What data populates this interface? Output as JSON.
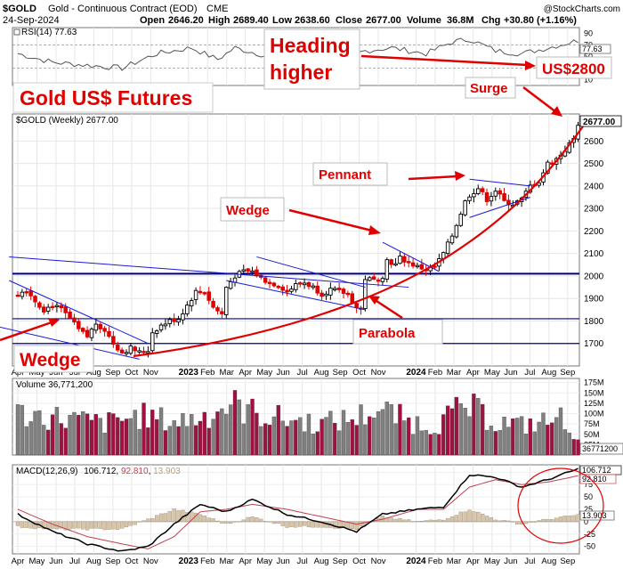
{
  "header": {
    "symbol": "$GOLD",
    "name": "Gold - Continuous Contract (EOD)",
    "exchange": "CME",
    "date": "24-Sep-2024",
    "open_label": "Open",
    "open": "2646.20",
    "high_label": "High",
    "high": "2689.40",
    "low_label": "Low",
    "low": "2638.60",
    "close_label": "Close",
    "close": "2677.00",
    "volume_label": "Volume",
    "volume": "36.8M",
    "chg_label": "Chg",
    "chg": "+30.80 (+1.16%)",
    "watermark": "@StockCharts.com"
  },
  "rsi": {
    "label": "RSI(14) 77.63",
    "value": 77.63,
    "value_label": "77.63",
    "levels": [
      90,
      70,
      50,
      30,
      10
    ],
    "range": [
      0,
      100
    ]
  },
  "price": {
    "label": "$GOLD (Weekly) 2677.00",
    "last_label": "2677.00",
    "y_ticks": [
      1700,
      1800,
      1900,
      2000,
      2100,
      2200,
      2300,
      2400,
      2500,
      2600
    ],
    "ylim": [
      1600,
      2720
    ],
    "horizontal_levels": [
      2010,
      1810,
      1700
    ]
  },
  "volume": {
    "label": "Volume 36,771,200",
    "value_label": "36771200",
    "y_tick_labels": [
      "175M",
      "150M",
      "125M",
      "100M",
      "75M",
      "50M",
      "25M"
    ],
    "y_ticks": [
      175,
      150,
      125,
      100,
      75,
      50,
      25
    ],
    "ylim": [
      0,
      185
    ]
  },
  "macd": {
    "label_prefix": "MACD(12,26,9)",
    "macd_value": "106.712",
    "signal_value": "92.810",
    "hist_value": "13.903",
    "y_ticks": [
      100,
      75,
      50,
      25,
      0,
      -25,
      -50
    ],
    "ylim": [
      -65,
      115
    ]
  },
  "x_axis": {
    "labels": [
      {
        "t": 0,
        "text": "Apr",
        "bold": false
      },
      {
        "t": 4.4,
        "text": "May",
        "bold": false
      },
      {
        "t": 8.8,
        "text": "Jun",
        "bold": false
      },
      {
        "t": 13.1,
        "text": "Jul",
        "bold": false
      },
      {
        "t": 17.5,
        "text": "Aug",
        "bold": false
      },
      {
        "t": 21.9,
        "text": "Sep",
        "bold": false
      },
      {
        "t": 26.2,
        "text": "Oct",
        "bold": false
      },
      {
        "t": 30.6,
        "text": "Nov",
        "bold": false
      },
      {
        "t": 39.3,
        "text": "2023",
        "bold": true
      },
      {
        "t": 43.7,
        "text": "Feb",
        "bold": false
      },
      {
        "t": 48.1,
        "text": "Mar",
        "bold": false
      },
      {
        "t": 52.4,
        "text": "Apr",
        "bold": false
      },
      {
        "t": 56.8,
        "text": "May",
        "bold": false
      },
      {
        "t": 61.1,
        "text": "Jun",
        "bold": false
      },
      {
        "t": 65.5,
        "text": "Jul",
        "bold": false
      },
      {
        "t": 69.9,
        "text": "Aug",
        "bold": false
      },
      {
        "t": 74.2,
        "text": "Sep",
        "bold": false
      },
      {
        "t": 78.6,
        "text": "Oct",
        "bold": false
      },
      {
        "t": 83.0,
        "text": "Nov",
        "bold": false
      },
      {
        "t": 91.7,
        "text": "2024",
        "bold": true
      },
      {
        "t": 96.1,
        "text": "Feb",
        "bold": false
      },
      {
        "t": 100.4,
        "text": "Mar",
        "bold": false
      },
      {
        "t": 104.8,
        "text": "Apr",
        "bold": false
      },
      {
        "t": 109.2,
        "text": "May",
        "bold": false
      },
      {
        "t": 113.5,
        "text": "Jun",
        "bold": false
      },
      {
        "t": 117.9,
        "text": "Jul",
        "bold": false
      },
      {
        "t": 122.3,
        "text": "Aug",
        "bold": false
      },
      {
        "t": 126.6,
        "text": "Sep",
        "bold": false
      }
    ]
  },
  "annotations": {
    "title": "Gold US$ Futures",
    "heading": [
      "Heading",
      "higher"
    ],
    "target": "US$2800",
    "surge": "Surge",
    "pennant": "Pennant",
    "wedge_upper": "Wedge",
    "parabola": "Parabola",
    "wedge_lower": "Wedge"
  },
  "colors": {
    "up_candle": "#000000",
    "down_candle": "#dd0000",
    "annotation_red": "#e00000",
    "trendline_blue": "#1a1ad6",
    "level_navy": "#000080",
    "volume_up": "#808080",
    "volume_down": "#a01040",
    "macd_line": "#000000",
    "signal_line": "#c04050",
    "histogram": "#d8c4a8"
  },
  "chart_data": {
    "type": "candlestick",
    "interval": "weekly",
    "start_week": "Apr 2022",
    "x_unit": "weeks from start of Apr 2022",
    "price_anchors": [
      {
        "t": 0,
        "close": 1920
      },
      {
        "t": 2,
        "close": 1940
      },
      {
        "t": 4,
        "close": 1890
      },
      {
        "t": 6,
        "close": 1850
      },
      {
        "t": 8,
        "close": 1870
      },
      {
        "t": 10,
        "close": 1850
      },
      {
        "t": 12,
        "close": 1810
      },
      {
        "t": 14,
        "close": 1760
      },
      {
        "t": 16,
        "close": 1730
      },
      {
        "t": 18,
        "close": 1790
      },
      {
        "t": 20,
        "close": 1760
      },
      {
        "t": 22,
        "close": 1700
      },
      {
        "t": 24,
        "close": 1660
      },
      {
        "t": 26,
        "close": 1680
      },
      {
        "t": 28,
        "close": 1660
      },
      {
        "t": 30,
        "close": 1670
      },
      {
        "t": 31,
        "close": 1750
      },
      {
        "t": 33,
        "close": 1780
      },
      {
        "t": 35,
        "close": 1800
      },
      {
        "t": 37,
        "close": 1810
      },
      {
        "t": 39,
        "close": 1870
      },
      {
        "t": 41,
        "close": 1930
      },
      {
        "t": 43,
        "close": 1930
      },
      {
        "t": 45,
        "close": 1860
      },
      {
        "t": 47,
        "close": 1830
      },
      {
        "t": 48,
        "close": 1950
      },
      {
        "t": 50,
        "close": 2000
      },
      {
        "t": 52,
        "close": 2020
      },
      {
        "t": 54,
        "close": 2020
      },
      {
        "t": 56,
        "close": 1990
      },
      {
        "t": 58,
        "close": 1970
      },
      {
        "t": 60,
        "close": 1960
      },
      {
        "t": 62,
        "close": 1930
      },
      {
        "t": 64,
        "close": 1960
      },
      {
        "t": 66,
        "close": 1970
      },
      {
        "t": 68,
        "close": 1950
      },
      {
        "t": 70,
        "close": 1920
      },
      {
        "t": 72,
        "close": 1940
      },
      {
        "t": 74,
        "close": 1930
      },
      {
        "t": 76,
        "close": 1920
      },
      {
        "t": 78,
        "close": 1860
      },
      {
        "t": 79,
        "close": 1850
      },
      {
        "t": 80,
        "close": 1990
      },
      {
        "t": 82,
        "close": 1980
      },
      {
        "t": 84,
        "close": 2000
      },
      {
        "t": 85,
        "close": 2070
      },
      {
        "t": 87,
        "close": 2050
      },
      {
        "t": 88,
        "close": 2080
      },
      {
        "t": 90,
        "close": 2060
      },
      {
        "t": 92,
        "close": 2040
      },
      {
        "t": 94,
        "close": 2030
      },
      {
        "t": 96,
        "close": 2040
      },
      {
        "t": 98,
        "close": 2100
      },
      {
        "t": 100,
        "close": 2180
      },
      {
        "t": 101,
        "close": 2230
      },
      {
        "t": 103,
        "close": 2330
      },
      {
        "t": 104,
        "close": 2360
      },
      {
        "t": 106,
        "close": 2390
      },
      {
        "t": 108,
        "close": 2340
      },
      {
        "t": 110,
        "close": 2380
      },
      {
        "t": 112,
        "close": 2330
      },
      {
        "t": 114,
        "close": 2320
      },
      {
        "t": 116,
        "close": 2340
      },
      {
        "t": 118,
        "close": 2400
      },
      {
        "t": 120,
        "close": 2420
      },
      {
        "t": 122,
        "close": 2500
      },
      {
        "t": 124,
        "close": 2520
      },
      {
        "t": 126,
        "close": 2560
      },
      {
        "t": 128,
        "close": 2610
      },
      {
        "t": 129,
        "close": 2677
      }
    ],
    "volume_anchors": [
      {
        "t": 0,
        "v": 105
      },
      {
        "t": 10,
        "v": 95
      },
      {
        "t": 20,
        "v": 80
      },
      {
        "t": 28,
        "v": 100
      },
      {
        "t": 36,
        "v": 85
      },
      {
        "t": 42,
        "v": 95
      },
      {
        "t": 46,
        "v": 115
      },
      {
        "t": 49,
        "v": 130
      },
      {
        "t": 55,
        "v": 105
      },
      {
        "t": 62,
        "v": 90
      },
      {
        "t": 70,
        "v": 80
      },
      {
        "t": 78,
        "v": 95
      },
      {
        "t": 82,
        "v": 115
      },
      {
        "t": 86,
        "v": 105
      },
      {
        "t": 90,
        "v": 85
      },
      {
        "t": 96,
        "v": 75
      },
      {
        "t": 100,
        "v": 105
      },
      {
        "t": 104,
        "v": 120
      },
      {
        "t": 110,
        "v": 85
      },
      {
        "t": 116,
        "v": 75
      },
      {
        "t": 122,
        "v": 85
      },
      {
        "t": 126,
        "v": 95
      },
      {
        "t": 129,
        "v": 37
      }
    ],
    "macd_anchors": [
      {
        "t": 0,
        "macd": 15,
        "signal": 25
      },
      {
        "t": 8,
        "macd": -20,
        "signal": -5
      },
      {
        "t": 16,
        "macd": -45,
        "signal": -30
      },
      {
        "t": 24,
        "macd": -60,
        "signal": -45
      },
      {
        "t": 30,
        "macd": -50,
        "signal": -55
      },
      {
        "t": 36,
        "macd": -5,
        "signal": -30
      },
      {
        "t": 42,
        "macd": 35,
        "signal": 20
      },
      {
        "t": 48,
        "macd": 20,
        "signal": 25
      },
      {
        "t": 54,
        "macd": 45,
        "signal": 35
      },
      {
        "t": 62,
        "macd": 15,
        "signal": 25
      },
      {
        "t": 70,
        "macd": 0,
        "signal": 10
      },
      {
        "t": 78,
        "macd": -20,
        "signal": -5
      },
      {
        "t": 84,
        "macd": 15,
        "signal": 5
      },
      {
        "t": 92,
        "macd": 25,
        "signal": 25
      },
      {
        "t": 98,
        "macd": 30,
        "signal": 25
      },
      {
        "t": 104,
        "macd": 95,
        "signal": 70
      },
      {
        "t": 110,
        "macd": 90,
        "signal": 85
      },
      {
        "t": 116,
        "macd": 70,
        "signal": 75
      },
      {
        "t": 122,
        "macd": 85,
        "signal": 80
      },
      {
        "t": 129,
        "macd": 106.7,
        "signal": 92.8
      }
    ],
    "rsi_anchors": [
      {
        "t": 0,
        "v": 55
      },
      {
        "t": 8,
        "v": 40
      },
      {
        "t": 16,
        "v": 35
      },
      {
        "t": 24,
        "v": 30
      },
      {
        "t": 32,
        "v": 55
      },
      {
        "t": 40,
        "v": 65
      },
      {
        "t": 46,
        "v": 45
      },
      {
        "t": 50,
        "v": 65
      },
      {
        "t": 58,
        "v": 50
      },
      {
        "t": 66,
        "v": 50
      },
      {
        "t": 74,
        "v": 45
      },
      {
        "t": 80,
        "v": 60
      },
      {
        "t": 86,
        "v": 65
      },
      {
        "t": 94,
        "v": 55
      },
      {
        "t": 100,
        "v": 75
      },
      {
        "t": 104,
        "v": 80
      },
      {
        "t": 110,
        "v": 60
      },
      {
        "t": 116,
        "v": 55
      },
      {
        "t": 122,
        "v": 65
      },
      {
        "t": 129,
        "v": 77.63
      }
    ],
    "trendlines": [
      {
        "name": "wedge-2022-top",
        "from": {
          "t": -2,
          "p": 1980
        },
        "to": {
          "t": 30,
          "p": 1700
        }
      },
      {
        "name": "wedge-2022-bottom",
        "from": {
          "t": -8,
          "p": 1790
        },
        "to": {
          "t": 28,
          "p": 1630
        }
      },
      {
        "name": "long-wedge-top",
        "from": {
          "t": -2,
          "p": 2085
        },
        "to": {
          "t": 90,
          "p": 1950
        }
      },
      {
        "name": "wedge-2023-top",
        "from": {
          "t": 55,
          "p": 2085
        },
        "to": {
          "t": 80,
          "p": 1950
        }
      },
      {
        "name": "wedge-2023-bottom",
        "from": {
          "t": 48,
          "p": 1980
        },
        "to": {
          "t": 80,
          "p": 1850
        }
      },
      {
        "name": "pennant-2024-a",
        "from": {
          "t": 84,
          "p": 2150
        },
        "to": {
          "t": 97,
          "p": 2020
        }
      },
      {
        "name": "pennant-2024-b",
        "from": {
          "t": 104,
          "p": 2430
        },
        "to": {
          "t": 118,
          "p": 2400
        }
      },
      {
        "name": "pennant-2024-c",
        "from": {
          "t": 104,
          "p": 2260
        },
        "to": {
          "t": 118,
          "p": 2350
        }
      }
    ]
  }
}
